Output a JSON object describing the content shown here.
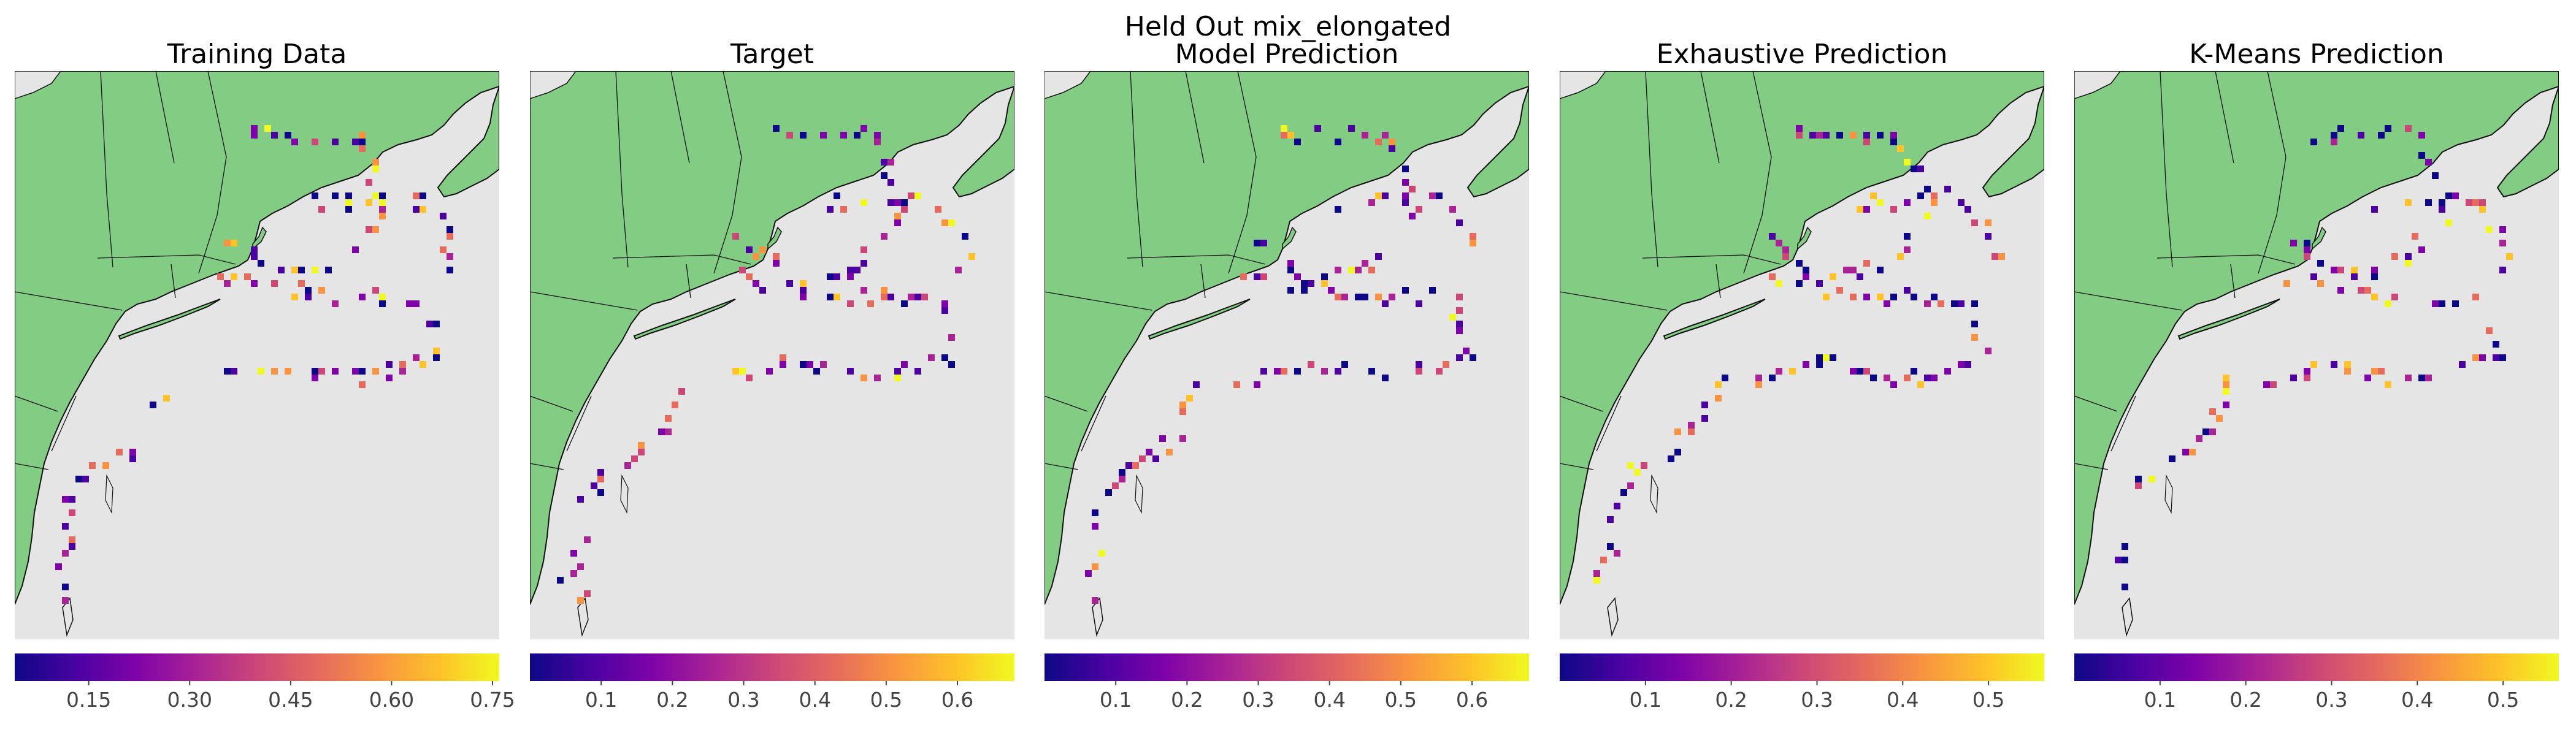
{
  "figure": {
    "title": "Held Out mix_elongated",
    "land_color": "#83cc83",
    "ocean_color": "#e5e5e5",
    "colormap": "plasma"
  },
  "panels": [
    {
      "title": "Training Data",
      "vmin": 0.04,
      "vmax": 0.76,
      "ticks": [
        "0.15",
        "0.30",
        "0.45",
        "0.60",
        "0.75"
      ],
      "tick_values": [
        0.15,
        0.3,
        0.45,
        0.6,
        0.75
      ]
    },
    {
      "title": "Target",
      "vmin": 0.0,
      "vmax": 0.68,
      "ticks": [
        "0.1",
        "0.2",
        "0.3",
        "0.4",
        "0.5",
        "0.6"
      ],
      "tick_values": [
        0.1,
        0.2,
        0.3,
        0.4,
        0.5,
        0.6
      ]
    },
    {
      "title": "Model Prediction",
      "vmin": 0.0,
      "vmax": 0.68,
      "ticks": [
        "0.1",
        "0.2",
        "0.3",
        "0.4",
        "0.5",
        "0.6"
      ],
      "tick_values": [
        0.1,
        0.2,
        0.3,
        0.4,
        0.5,
        0.6
      ]
    },
    {
      "title": "Exhaustive Prediction",
      "vmin": 0.0,
      "vmax": 0.565,
      "ticks": [
        "0.1",
        "0.2",
        "0.3",
        "0.4",
        "0.5"
      ],
      "tick_values": [
        0.1,
        0.2,
        0.3,
        0.4,
        0.5
      ]
    },
    {
      "title": "K-Means Prediction",
      "vmin": 0.0,
      "vmax": 0.565,
      "ticks": [
        "0.1",
        "0.2",
        "0.3",
        "0.4",
        "0.5"
      ],
      "tick_values": [
        0.1,
        0.2,
        0.3,
        0.4,
        0.5
      ]
    }
  ]
}
